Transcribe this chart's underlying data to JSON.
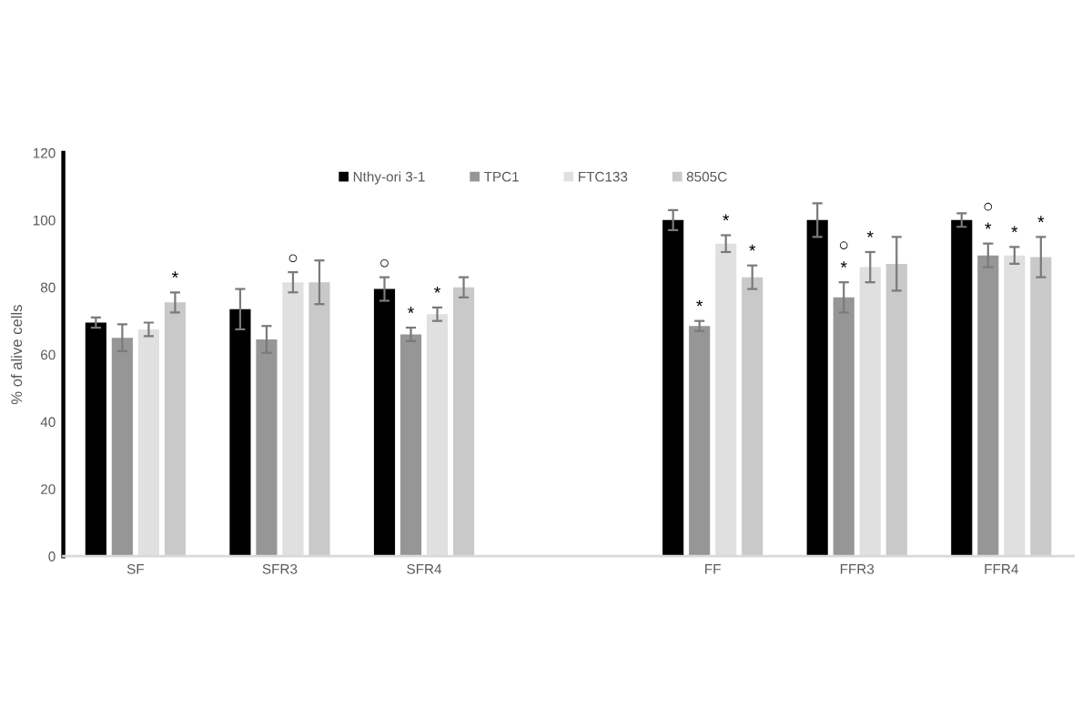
{
  "chart_data": {
    "type": "bar",
    "ylabel": "% of alive cells",
    "categories": [
      "SF",
      "SFR3",
      "SFR4",
      null,
      "FF",
      "FFR3",
      "FFR4"
    ],
    "series": [
      {
        "name": "Nthy-ori 3-1",
        "color": "#000000",
        "values": [
          69.5,
          73.5,
          79.5,
          null,
          100,
          100,
          100
        ],
        "errors": [
          1.5,
          6,
          3.5,
          null,
          3,
          5,
          2
        ],
        "value_labels": [
          null,
          null,
          "○",
          null,
          null,
          null,
          null
        ]
      },
      {
        "name": "TPC1",
        "color": "#969696",
        "values": [
          65,
          64.5,
          66,
          null,
          68.5,
          77,
          89.5
        ],
        "errors": [
          4,
          4,
          2,
          null,
          1.5,
          4.5,
          3.5
        ],
        "value_labels": [
          null,
          null,
          "*",
          null,
          "*",
          "○\n*",
          "○\n*"
        ]
      },
      {
        "name": "FTC133",
        "color": "#e0e0e0",
        "values": [
          67.5,
          81.5,
          72,
          null,
          93,
          86,
          89.5
        ],
        "errors": [
          2,
          3,
          2,
          null,
          2.5,
          4.5,
          2.5
        ],
        "value_labels": [
          null,
          "○",
          "*",
          null,
          "*",
          "*",
          "*"
        ]
      },
      {
        "name": "8505C",
        "color": "#c9c9c9",
        "values": [
          75.5,
          81.5,
          80,
          null,
          83,
          87,
          89
        ],
        "errors": [
          3,
          6.5,
          3,
          null,
          3.5,
          8,
          6
        ],
        "value_labels": [
          "*",
          null,
          null,
          null,
          "*",
          null,
          "*"
        ]
      }
    ],
    "ylim": [
      0,
      120
    ],
    "yticks": [
      0,
      20,
      40,
      60,
      80,
      100,
      120
    ],
    "grid": false,
    "legend": "top"
  }
}
